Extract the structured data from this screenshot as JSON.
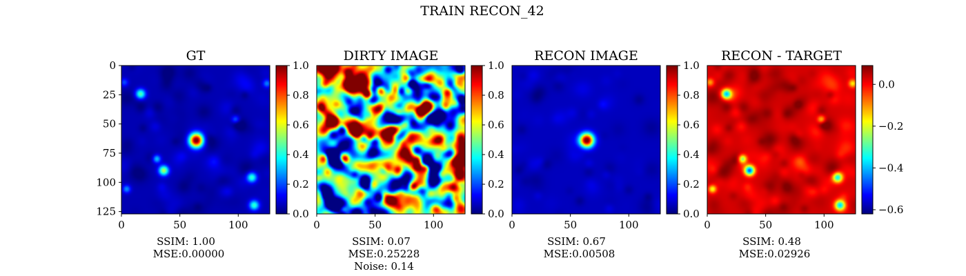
{
  "figure": {
    "suptitle": "TRAIN RECON_42"
  },
  "colormap": "jet",
  "chart_data": [
    {
      "type": "heatmap",
      "title": "GT",
      "xlim": [
        0,
        127
      ],
      "ylim": [
        127,
        0
      ],
      "xticks": [
        "0",
        "50",
        "100"
      ],
      "yticks": [
        "0",
        "25",
        "50",
        "75",
        "100",
        "125"
      ],
      "colorbar": {
        "range": [
          0.0,
          1.0
        ],
        "ticks": [
          "0.0",
          "0.2",
          "0.4",
          "0.6",
          "0.8",
          "1.0"
        ]
      },
      "caption": [
        "SSIM: 1.00",
        "MSE:0.00000"
      ]
    },
    {
      "type": "heatmap",
      "title": "DIRTY IMAGE",
      "xlim": [
        0,
        127
      ],
      "ylim": [
        127,
        0
      ],
      "xticks": [
        "0",
        "50",
        "100"
      ],
      "colorbar": {
        "range": [
          0.0,
          1.0
        ],
        "ticks": [
          "0.0",
          "0.2",
          "0.4",
          "0.6",
          "0.8",
          "1.0"
        ]
      },
      "caption": [
        "SSIM: 0.07",
        "MSE:0.25228",
        "Noise: 0.14"
      ]
    },
    {
      "type": "heatmap",
      "title": "RECON IMAGE",
      "xlim": [
        0,
        127
      ],
      "ylim": [
        127,
        0
      ],
      "xticks": [
        "0",
        "50",
        "100"
      ],
      "colorbar": {
        "range": [
          0.0,
          1.0
        ],
        "ticks": [
          "0.0",
          "0.2",
          "0.4",
          "0.6",
          "0.8",
          "1.0"
        ]
      },
      "caption": [
        "SSIM: 0.67",
        "MSE:0.00508"
      ]
    },
    {
      "type": "heatmap",
      "title": "RECON - TARGET",
      "xlim": [
        0,
        127
      ],
      "ylim": [
        127,
        0
      ],
      "xticks": [
        "0",
        "50",
        "100"
      ],
      "colorbar": {
        "range": [
          -0.62,
          0.09
        ],
        "ticks": [
          "0.0",
          "−0.2",
          "−0.4",
          "−0.6"
        ],
        "tick_values": [
          0.0,
          -0.2,
          -0.4,
          -0.6
        ]
      },
      "caption": [
        "SSIM: 0.48",
        "MSE:0.02926"
      ]
    }
  ],
  "image_features": {
    "gt_blobs": [
      {
        "x": 64,
        "y": 64,
        "r": 7,
        "v": 1.0
      },
      {
        "x": 16,
        "y": 24,
        "r": 5,
        "v": 0.42
      },
      {
        "x": 36,
        "y": 90,
        "r": 5,
        "v": 0.5
      },
      {
        "x": 30,
        "y": 80,
        "r": 4,
        "v": 0.28
      },
      {
        "x": 112,
        "y": 96,
        "r": 5,
        "v": 0.38
      },
      {
        "x": 114,
        "y": 120,
        "r": 5,
        "v": 0.38
      },
      {
        "x": 98,
        "y": 46,
        "r": 4,
        "v": 0.18
      },
      {
        "x": 4,
        "y": 106,
        "r": 4,
        "v": 0.22
      },
      {
        "x": 125,
        "y": 15,
        "r": 4,
        "v": 0.2
      },
      {
        "x": 2,
        "y": 14,
        "r": 4,
        "v": 0.15
      }
    ],
    "recon_blobs": [
      {
        "x": 64,
        "y": 64,
        "r": 7,
        "v": 1.0
      }
    ]
  }
}
